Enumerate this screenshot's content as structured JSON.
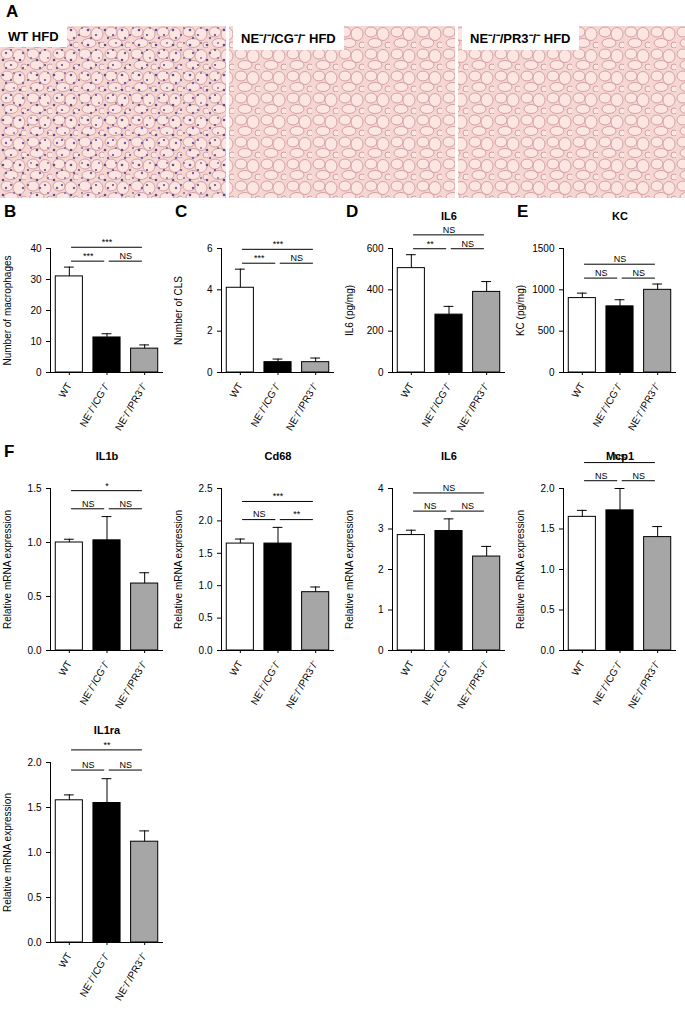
{
  "chart_data": [
    {
      "type": "image",
      "panel": "A",
      "labels": [
        "WT HFD",
        "NE⁻/⁻/CG⁻/⁻ HFD",
        "NE⁻/⁻/PR3⁻/⁻ HFD"
      ]
    },
    {
      "type": "bar",
      "panel": "B",
      "y_label": "Number of macrophages",
      "categories": [
        "WT",
        "NE⁻/⁻/CG⁻/⁻",
        "NE⁻/⁻/PR3⁻/⁻"
      ],
      "values": [
        31,
        11.3,
        7.7
      ],
      "errors": [
        3,
        1.2,
        1.2
      ],
      "colors": [
        "#ffffff",
        "#000000",
        "#a6a6a6"
      ],
      "ylim": [
        0,
        40
      ],
      "yticks": [
        0,
        10,
        20,
        30,
        40
      ],
      "comparisons": [
        {
          "from": 0,
          "to": 1,
          "label": "***"
        },
        {
          "from": 0,
          "to": 2,
          "label": "***"
        },
        {
          "from": 1,
          "to": 2,
          "label": "NS"
        }
      ]
    },
    {
      "type": "bar",
      "panel": "C",
      "y_label": "Number of CLS",
      "categories": [
        "WT",
        "NE⁻/⁻/CG⁻/⁻",
        "NE⁻/⁻/PR3⁻/⁻"
      ],
      "values": [
        4.1,
        0.5,
        0.5
      ],
      "errors": [
        0.9,
        0.15,
        0.2
      ],
      "colors": [
        "#ffffff",
        "#000000",
        "#a6a6a6"
      ],
      "ylim": [
        0,
        6
      ],
      "yticks": [
        0,
        2,
        4,
        6
      ],
      "comparisons": [
        {
          "from": 0,
          "to": 1,
          "label": "***"
        },
        {
          "from": 0,
          "to": 2,
          "label": "***"
        },
        {
          "from": 1,
          "to": 2,
          "label": "NS"
        }
      ]
    },
    {
      "type": "bar",
      "panel": "D",
      "title": "IL6",
      "y_label": "IL6 (pg/mg)",
      "categories": [
        "WT",
        "NE⁻/⁻/CG⁻/⁻",
        "NE⁻/⁻/PR3⁻/⁻"
      ],
      "values": [
        505,
        280,
        390
      ],
      "errors": [
        65,
        40,
        50
      ],
      "colors": [
        "#ffffff",
        "#000000",
        "#a6a6a6"
      ],
      "ylim": [
        0,
        600
      ],
      "yticks": [
        0,
        200,
        400,
        600
      ],
      "comparisons": [
        {
          "from": 0,
          "to": 1,
          "label": "**"
        },
        {
          "from": 0,
          "to": 2,
          "label": "NS"
        },
        {
          "from": 1,
          "to": 2,
          "label": "NS"
        }
      ]
    },
    {
      "type": "bar",
      "panel": "E",
      "title": "KC",
      "y_label": "KC (pg/mg)",
      "categories": [
        "WT",
        "NE⁻/⁻/CG⁻/⁻",
        "NE⁻/⁻/PR3⁻/⁻"
      ],
      "values": [
        900,
        800,
        1000
      ],
      "errors": [
        60,
        80,
        70
      ],
      "colors": [
        "#ffffff",
        "#000000",
        "#a6a6a6"
      ],
      "ylim": [
        0,
        1500
      ],
      "yticks": [
        0,
        500,
        1000,
        1500
      ],
      "comparisons": [
        {
          "from": 0,
          "to": 1,
          "label": "NS"
        },
        {
          "from": 0,
          "to": 2,
          "label": "NS"
        },
        {
          "from": 1,
          "to": 2,
          "label": "NS"
        }
      ]
    },
    {
      "type": "bar",
      "panel": "F",
      "title": "IL1b",
      "y_label": "Relative mRNA expression",
      "categories": [
        "WT",
        "NE⁻/⁻/CG⁻/⁻",
        "NE⁻/⁻/PR3⁻/⁻"
      ],
      "values": [
        1.0,
        1.02,
        0.62
      ],
      "errors": [
        0.03,
        0.22,
        0.1
      ],
      "colors": [
        "#ffffff",
        "#000000",
        "#a6a6a6"
      ],
      "ylim": [
        0,
        1.5
      ],
      "yticks": [
        {
          "value": 0,
          "label": "0.0"
        },
        0.5,
        {
          "value": 1,
          "label": "1.0"
        },
        1.5
      ],
      "comparisons": [
        {
          "from": 0,
          "to": 1,
          "label": "NS"
        },
        {
          "from": 0,
          "to": 2,
          "label": "*"
        },
        {
          "from": 1,
          "to": 2,
          "label": "NS"
        }
      ]
    },
    {
      "type": "bar",
      "title": "Cd68",
      "y_label": "Relative mRNA expression",
      "categories": [
        "WT",
        "NE⁻/⁻/CG⁻/⁻",
        "NE⁻/⁻/PR3⁻/⁻"
      ],
      "values": [
        1.65,
        1.65,
        0.9
      ],
      "errors": [
        0.07,
        0.25,
        0.08
      ],
      "colors": [
        "#ffffff",
        "#000000",
        "#a6a6a6"
      ],
      "ylim": [
        0,
        2.5
      ],
      "yticks": [
        {
          "value": 0,
          "label": "0.0"
        },
        0.5,
        {
          "value": 1,
          "label": "1.0"
        },
        1.5,
        {
          "value": 2,
          "label": "2.0"
        },
        2.5
      ],
      "comparisons": [
        {
          "from": 0,
          "to": 1,
          "label": "NS"
        },
        {
          "from": 0,
          "to": 2,
          "label": "***"
        },
        {
          "from": 1,
          "to": 2,
          "label": "**"
        }
      ]
    },
    {
      "type": "bar",
      "title": "IL6",
      "y_label": "Relative mRNA expression",
      "categories": [
        "WT",
        "NE⁻/⁻/CG⁻/⁻",
        "NE⁻/⁻/PR3⁻/⁻"
      ],
      "values": [
        2.85,
        2.95,
        2.32
      ],
      "errors": [
        0.12,
        0.3,
        0.25
      ],
      "colors": [
        "#ffffff",
        "#000000",
        "#a6a6a6"
      ],
      "ylim": [
        0,
        4
      ],
      "yticks": [
        0,
        1,
        2,
        3,
        4
      ],
      "comparisons": [
        {
          "from": 0,
          "to": 1,
          "label": "NS"
        },
        {
          "from": 0,
          "to": 2,
          "label": "NS"
        },
        {
          "from": 1,
          "to": 2,
          "label": "NS"
        }
      ]
    },
    {
      "type": "bar",
      "title": "Mcp1",
      "y_label": "Relative mRNA expression",
      "categories": [
        "WT",
        "NE⁻/⁻/CG⁻/⁻",
        "NE⁻/⁻/PR3⁻/⁻"
      ],
      "values": [
        1.65,
        1.73,
        1.4
      ],
      "errors": [
        0.08,
        0.27,
        0.13
      ],
      "colors": [
        "#ffffff",
        "#000000",
        "#a6a6a6"
      ],
      "ylim": [
        0,
        2
      ],
      "yticks": [
        {
          "value": 0,
          "label": "0.0"
        },
        0.5,
        {
          "value": 1,
          "label": "1.0"
        },
        1.5,
        {
          "value": 2,
          "label": "2.0"
        }
      ],
      "comparisons": [
        {
          "from": 0,
          "to": 1,
          "label": "NS"
        },
        {
          "from": 0,
          "to": 2,
          "label": "NS"
        },
        {
          "from": 1,
          "to": 2,
          "label": "NS"
        }
      ]
    },
    {
      "type": "bar",
      "title": "IL1ra",
      "y_label": "Relative mRNA expression",
      "categories": [
        "WT",
        "NE⁻/⁻/CG⁻/⁻",
        "NE⁻/⁻/PR3⁻/⁻"
      ],
      "values": [
        1.58,
        1.55,
        1.12
      ],
      "errors": [
        0.06,
        0.27,
        0.12
      ],
      "colors": [
        "#ffffff",
        "#000000",
        "#a6a6a6"
      ],
      "ylim": [
        0,
        2
      ],
      "yticks": [
        {
          "value": 0,
          "label": "0.0"
        },
        0.5,
        {
          "value": 1,
          "label": "1.0"
        },
        1.5,
        {
          "value": 2,
          "label": "2.0"
        }
      ],
      "comparisons": [
        {
          "from": 0,
          "to": 1,
          "label": "NS"
        },
        {
          "from": 0,
          "to": 2,
          "label": "**"
        },
        {
          "from": 1,
          "to": 2,
          "label": "NS"
        }
      ]
    }
  ]
}
